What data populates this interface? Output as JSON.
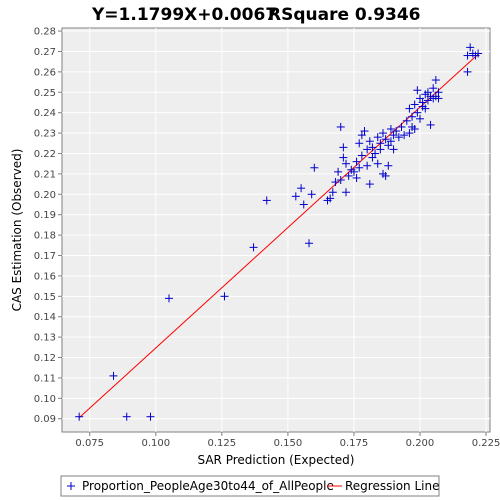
{
  "chart_data": {
    "type": "scatter",
    "title_equation": "Y=1.1799X+0.0067",
    "title_rsquare": "RSquare 0.9346",
    "xlabel": "SAR Prediction (Expected)",
    "ylabel": "CAS Estimation (Observed)",
    "xlim": [
      0.0645,
      0.2265
    ],
    "ylim": [
      0.0835,
      0.2815
    ],
    "xticks": [
      "0.075",
      "0.100",
      "0.125",
      "0.150",
      "0.175",
      "0.200",
      "0.225"
    ],
    "yticks": [
      "0.09",
      "0.10",
      "0.11",
      "0.12",
      "0.13",
      "0.14",
      "0.15",
      "0.16",
      "0.17",
      "0.18",
      "0.19",
      "0.20",
      "0.21",
      "0.22",
      "0.23",
      "0.24",
      "0.25",
      "0.26",
      "0.27",
      "0.28"
    ],
    "grid": true,
    "regression": {
      "slope": 1.1799,
      "intercept": 0.0067,
      "x_range": [
        0.071,
        0.222
      ],
      "color": "#ff0000"
    },
    "series": [
      {
        "name": "Proportion_PeopleAge30to44_of_AllPeople",
        "color": "#0000cc",
        "marker": "plus",
        "points": [
          [
            0.071,
            0.091
          ],
          [
            0.084,
            0.111
          ],
          [
            0.089,
            0.091
          ],
          [
            0.098,
            0.091
          ],
          [
            0.105,
            0.149
          ],
          [
            0.126,
            0.15
          ],
          [
            0.137,
            0.174
          ],
          [
            0.142,
            0.197
          ],
          [
            0.153,
            0.199
          ],
          [
            0.155,
            0.203
          ],
          [
            0.156,
            0.195
          ],
          [
            0.158,
            0.176
          ],
          [
            0.159,
            0.2
          ],
          [
            0.16,
            0.213
          ],
          [
            0.165,
            0.197
          ],
          [
            0.166,
            0.198
          ],
          [
            0.167,
            0.201
          ],
          [
            0.168,
            0.206
          ],
          [
            0.169,
            0.211
          ],
          [
            0.17,
            0.207
          ],
          [
            0.17,
            0.233
          ],
          [
            0.171,
            0.218
          ],
          [
            0.171,
            0.223
          ],
          [
            0.172,
            0.201
          ],
          [
            0.172,
            0.215
          ],
          [
            0.173,
            0.209
          ],
          [
            0.174,
            0.212
          ],
          [
            0.175,
            0.211
          ],
          [
            0.176,
            0.208
          ],
          [
            0.176,
            0.216
          ],
          [
            0.177,
            0.213
          ],
          [
            0.177,
            0.225
          ],
          [
            0.178,
            0.219
          ],
          [
            0.178,
            0.229
          ],
          [
            0.179,
            0.231
          ],
          [
            0.18,
            0.222
          ],
          [
            0.18,
            0.214
          ],
          [
            0.181,
            0.205
          ],
          [
            0.181,
            0.226
          ],
          [
            0.182,
            0.218
          ],
          [
            0.182,
            0.223
          ],
          [
            0.183,
            0.22
          ],
          [
            0.184,
            0.215
          ],
          [
            0.184,
            0.228
          ],
          [
            0.185,
            0.222
          ],
          [
            0.185,
            0.225
          ],
          [
            0.186,
            0.21
          ],
          [
            0.186,
            0.23
          ],
          [
            0.187,
            0.227
          ],
          [
            0.187,
            0.209
          ],
          [
            0.188,
            0.224
          ],
          [
            0.188,
            0.214
          ],
          [
            0.189,
            0.232
          ],
          [
            0.189,
            0.226
          ],
          [
            0.19,
            0.229
          ],
          [
            0.19,
            0.222
          ],
          [
            0.191,
            0.231
          ],
          [
            0.192,
            0.228
          ],
          [
            0.193,
            0.233
          ],
          [
            0.194,
            0.229
          ],
          [
            0.195,
            0.236
          ],
          [
            0.196,
            0.23
          ],
          [
            0.196,
            0.242
          ],
          [
            0.197,
            0.238
          ],
          [
            0.197,
            0.233
          ],
          [
            0.198,
            0.232
          ],
          [
            0.198,
            0.244
          ],
          [
            0.199,
            0.251
          ],
          [
            0.199,
            0.24
          ],
          [
            0.2,
            0.247
          ],
          [
            0.2,
            0.237
          ],
          [
            0.201,
            0.245
          ],
          [
            0.201,
            0.243
          ],
          [
            0.202,
            0.249
          ],
          [
            0.202,
            0.242
          ],
          [
            0.203,
            0.25
          ],
          [
            0.203,
            0.246
          ],
          [
            0.204,
            0.248
          ],
          [
            0.204,
            0.234
          ],
          [
            0.205,
            0.247
          ],
          [
            0.205,
            0.252
          ],
          [
            0.206,
            0.248
          ],
          [
            0.206,
            0.256
          ],
          [
            0.207,
            0.247
          ],
          [
            0.207,
            0.25
          ],
          [
            0.218,
            0.26
          ],
          [
            0.218,
            0.268
          ],
          [
            0.219,
            0.272
          ],
          [
            0.22,
            0.269
          ],
          [
            0.221,
            0.268
          ],
          [
            0.222,
            0.269
          ]
        ]
      }
    ],
    "legend": {
      "position": "bottom",
      "series_label": "Proportion_PeopleAge30to44_of_AllPeople",
      "regression_label": "Regression Line"
    }
  }
}
